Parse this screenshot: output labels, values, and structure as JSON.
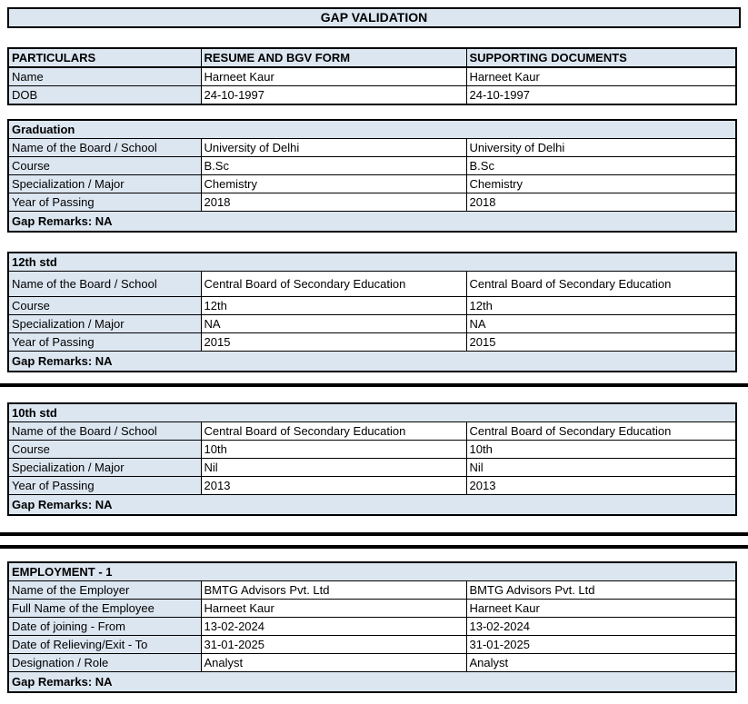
{
  "document": {
    "title": "GAP VALIDATION"
  },
  "colors": {
    "accent_cell_bg": "#DCE6F1",
    "border": "#000000",
    "text": "#000000"
  },
  "particulars_table": {
    "headers": [
      "PARTICULARS",
      "RESUME AND BGV FORM",
      "SUPPORTING DOCUMENTS"
    ],
    "rows": [
      {
        "label": "Name",
        "resume": "Harneet Kaur",
        "supporting": "Harneet Kaur"
      },
      {
        "label": "DOB",
        "resume": "24-10-1997",
        "supporting": "24-10-1997"
      }
    ]
  },
  "sections": [
    {
      "title": "Graduation",
      "rows": [
        {
          "label": "Name of the Board / School",
          "resume": "University of Delhi",
          "supporting": "University of Delhi"
        },
        {
          "label": "Course",
          "resume": "B.Sc",
          "supporting": "B.Sc"
        },
        {
          "label": "Specialization / Major",
          "resume": "Chemistry",
          "supporting": "Chemistry"
        },
        {
          "label": "Year of Passing",
          "resume": "2018",
          "supporting": "2018"
        }
      ],
      "gap_remarks": "Gap Remarks: NA"
    },
    {
      "title": "12th std",
      "rows": [
        {
          "label": "Name of the Board / School",
          "resume": "Central Board of Secondary Education",
          "supporting": "Central Board of Secondary Education"
        },
        {
          "label": "Course",
          "resume": "12th",
          "supporting": "12th"
        },
        {
          "label": "Specialization / Major",
          "resume": "NA",
          "supporting": "NA"
        },
        {
          "label": "Year of Passing",
          "resume": "2015",
          "supporting": "2015"
        }
      ],
      "gap_remarks": "Gap Remarks: NA"
    },
    {
      "title": "10th std",
      "rows": [
        {
          "label": "Name of the Board / School",
          "resume": "Central Board of Secondary Education",
          "supporting": "Central Board of Secondary Education"
        },
        {
          "label": "Course",
          "resume": "10th",
          "supporting": "10th"
        },
        {
          "label": "Specialization / Major",
          "resume": "Nil",
          "supporting": "Nil"
        },
        {
          "label": "Year of Passing",
          "resume": "2013",
          "supporting": "2013"
        }
      ],
      "gap_remarks": "Gap Remarks: NA"
    },
    {
      "title": "EMPLOYMENT - 1",
      "rows": [
        {
          "label": "Name of the Employer",
          "resume": "BMTG Advisors Pvt. Ltd",
          "supporting": "BMTG Advisors Pvt. Ltd"
        },
        {
          "label": "Full Name of the Employee",
          "resume": "Harneet Kaur",
          "supporting": "Harneet Kaur"
        },
        {
          "label": "Date of joining - From",
          "resume": "13-02-2024",
          "supporting": "13-02-2024"
        },
        {
          "label": "Date of Relieving/Exit - To",
          "resume": "31-01-2025",
          "supporting": "31-01-2025"
        },
        {
          "label": "Designation / Role",
          "resume": "Analyst",
          "supporting": "Analyst"
        }
      ],
      "gap_remarks": "Gap Remarks: NA"
    }
  ]
}
